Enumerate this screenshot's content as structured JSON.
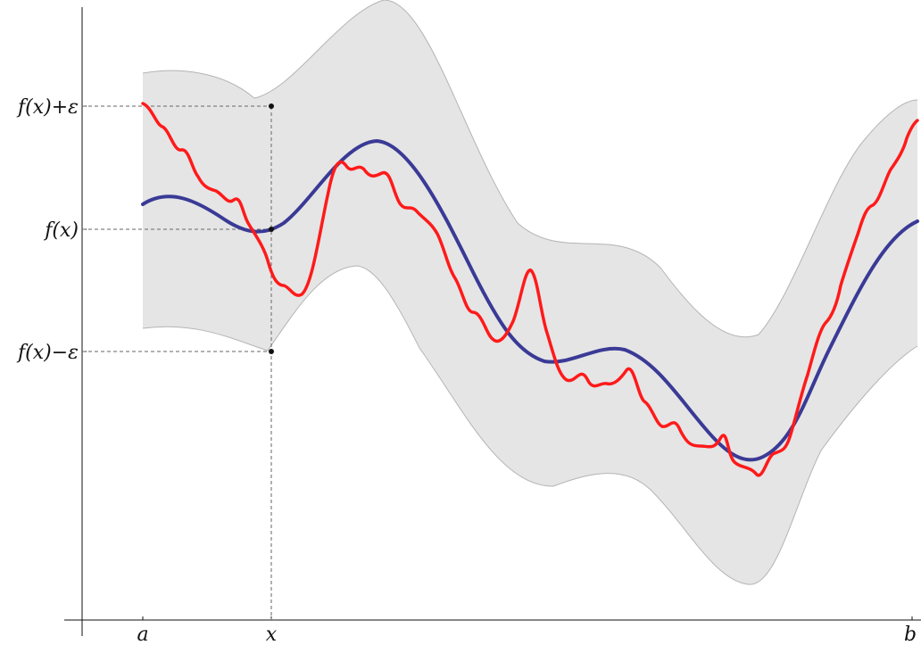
{
  "figure": {
    "x_tick_labels": {
      "a": "a",
      "x": "x",
      "b": "b"
    },
    "y_tick_labels": {
      "upper": "f(x)+ε",
      "center": "f(x)",
      "lower": "f(x)−ε"
    }
  },
  "colors": {
    "band_fill": "#e5e5e5",
    "band_edge": "#b4b4b4",
    "f_curve": "#3a3a96",
    "g_curve": "#ff1a1a",
    "axis": "#111111",
    "guide": "#666666"
  }
}
